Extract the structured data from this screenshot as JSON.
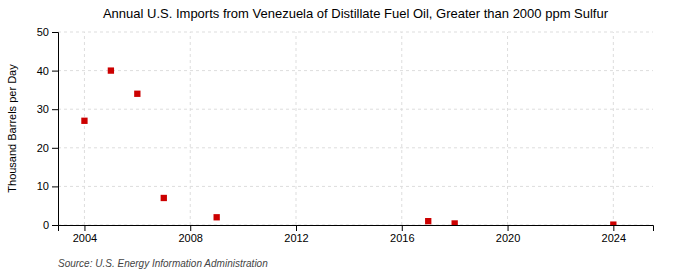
{
  "chart_data": {
    "type": "scatter",
    "title": "Annual U.S. Imports from Venezuela of Distillate Fuel Oil, Greater than 2000 ppm Sulfur",
    "ylabel": "Thousand Barrels per Day",
    "source": "Source: U.S. Energy Information Administration",
    "x": [
      2004,
      2005,
      2006,
      2007,
      2009,
      2017,
      2018,
      2024
    ],
    "values": [
      27,
      40,
      34,
      7,
      2,
      1,
      0.4,
      0.1
    ],
    "color": "#cc0000",
    "marker": "square",
    "xlim": [
      2003,
      2025.5
    ],
    "xticks": [
      2004,
      2008,
      2012,
      2016,
      2020,
      2024
    ],
    "ylim": [
      0,
      50
    ],
    "yticks": [
      0,
      10,
      20,
      30,
      40,
      50
    ],
    "grid": true
  }
}
